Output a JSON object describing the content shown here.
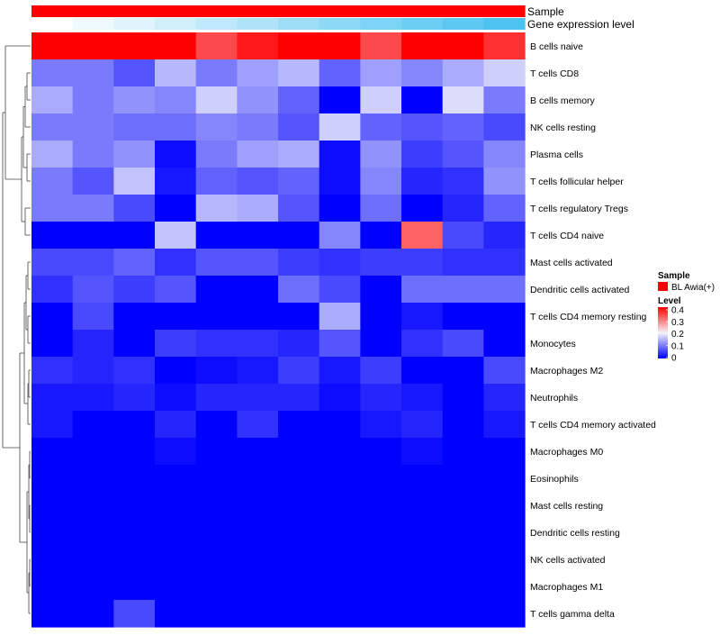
{
  "chart_data": {
    "type": "heatmap",
    "annotation_tracks": [
      {
        "name": "Sample",
        "values": [
          "BL Awia(+)",
          "BL Awia(+)",
          "BL Awia(+)",
          "BL Awia(+)",
          "BL Awia(+)",
          "BL Awia(+)",
          "BL Awia(+)",
          "BL Awia(+)",
          "BL Awia(+)",
          "BL Awia(+)",
          "BL Awia(+)",
          "BL Awia(+)"
        ],
        "color": "#ff0000"
      },
      {
        "name": "Gene expression level",
        "values": [
          0.0,
          0.09,
          0.18,
          0.27,
          0.36,
          0.45,
          0.55,
          0.64,
          0.73,
          0.82,
          0.91,
          1.0
        ],
        "low_color": "#ffffff",
        "high_color": "#4dc3f0"
      }
    ],
    "rows": [
      "B cells naive",
      "T cells CD8",
      "B cells memory",
      "NK cells resting",
      "Plasma cells",
      "T cells follicular helper",
      "T cells regulatory  Tregs",
      "T cells CD4 naive",
      "Mast cells activated",
      "Dendritic cells activated",
      "T cells CD4 memory resting",
      "Monocytes",
      "Macrophages M2",
      "Neutrophils",
      "T cells CD4 memory activated",
      "Macrophages M0",
      "Eosinophils",
      "Mast cells resting",
      "Dendritic cells resting",
      "NK cells activated",
      "Macrophages M1",
      "T cells gamma delta"
    ],
    "values": [
      [
        0.4,
        0.48,
        0.42,
        0.48,
        0.34,
        0.38,
        0.45,
        0.48,
        0.34,
        0.45,
        0.42,
        0.36
      ],
      [
        0.1,
        0.1,
        0.07,
        0.15,
        0.1,
        0.13,
        0.15,
        0.08,
        0.13,
        0.11,
        0.14,
        0.17
      ],
      [
        0.14,
        0.1,
        0.12,
        0.11,
        0.17,
        0.12,
        0.08,
        0.0,
        0.17,
        0.0,
        0.18,
        0.1
      ],
      [
        0.1,
        0.1,
        0.09,
        0.09,
        0.11,
        0.1,
        0.07,
        0.17,
        0.08,
        0.07,
        0.08,
        0.06
      ],
      [
        0.14,
        0.1,
        0.12,
        0.01,
        0.1,
        0.13,
        0.14,
        0.01,
        0.12,
        0.05,
        0.07,
        0.11
      ],
      [
        0.1,
        0.07,
        0.16,
        0.02,
        0.08,
        0.07,
        0.08,
        0.01,
        0.11,
        0.03,
        0.04,
        0.12
      ],
      [
        0.1,
        0.1,
        0.06,
        0.0,
        0.15,
        0.14,
        0.07,
        0.0,
        0.09,
        0.0,
        0.03,
        0.08
      ],
      [
        0.0,
        0.0,
        0.0,
        0.16,
        0.0,
        0.0,
        0.0,
        0.11,
        0.0,
        0.32,
        0.06,
        0.03
      ],
      [
        0.06,
        0.06,
        0.08,
        0.04,
        0.07,
        0.07,
        0.05,
        0.04,
        0.05,
        0.05,
        0.04,
        0.04
      ],
      [
        0.04,
        0.07,
        0.05,
        0.07,
        0.0,
        0.0,
        0.09,
        0.06,
        0.0,
        0.09,
        0.09,
        0.09
      ],
      [
        0.0,
        0.06,
        0.0,
        0.0,
        0.0,
        0.0,
        0.0,
        0.14,
        0.0,
        0.02,
        0.0,
        0.0
      ],
      [
        0.0,
        0.03,
        0.0,
        0.05,
        0.04,
        0.04,
        0.03,
        0.07,
        0.0,
        0.04,
        0.06,
        0.0
      ],
      [
        0.04,
        0.03,
        0.04,
        0.0,
        0.01,
        0.02,
        0.05,
        0.02,
        0.05,
        0.0,
        0.0,
        0.06
      ],
      [
        0.02,
        0.02,
        0.03,
        0.01,
        0.03,
        0.03,
        0.03,
        0.01,
        0.03,
        0.02,
        0.0,
        0.03
      ],
      [
        0.02,
        0.0,
        0.0,
        0.03,
        0.0,
        0.04,
        0.0,
        0.0,
        0.02,
        0.03,
        0.0,
        0.02
      ],
      [
        0.0,
        0.0,
        0.0,
        0.01,
        0.0,
        0.0,
        0.0,
        0.0,
        0.0,
        0.01,
        0.0,
        0.0
      ],
      [
        0.0,
        0.0,
        0.0,
        0.0,
        0.0,
        0.0,
        0.0,
        0.0,
        0.0,
        0.0,
        0.0,
        0.0
      ],
      [
        0.0,
        0.0,
        0.0,
        0.0,
        0.0,
        0.0,
        0.0,
        0.0,
        0.0,
        0.0,
        0.0,
        0.0
      ],
      [
        0.0,
        0.0,
        0.0,
        0.0,
        0.0,
        0.0,
        0.0,
        0.0,
        0.0,
        0.0,
        0.0,
        0.0
      ],
      [
        0.0,
        0.0,
        0.0,
        0.0,
        0.0,
        0.0,
        0.0,
        0.0,
        0.0,
        0.0,
        0.0,
        0.0
      ],
      [
        0.0,
        0.0,
        0.0,
        0.0,
        0.0,
        0.0,
        0.0,
        0.0,
        0.0,
        0.0,
        0.0,
        0.0
      ],
      [
        0.0,
        0.0,
        0.06,
        0.0,
        0.0,
        0.0,
        0.0,
        0.0,
        0.0,
        0.0,
        0.0,
        0.0
      ]
    ],
    "color_scale": {
      "min": 0,
      "mid": 0.2,
      "max": 0.4,
      "low_color": "#0000ff",
      "mid_color": "#f4f4fa",
      "high_color": "#ff0000"
    },
    "legend": {
      "position": "right",
      "sample_title": "Sample",
      "sample_entry": "BL Awia(+)",
      "sample_color": "#ff0000",
      "level_title": "Level",
      "ticks": [
        "0.4",
        "0.3",
        "0.2",
        "0.1",
        "0"
      ]
    },
    "row_dendrogram": true
  }
}
